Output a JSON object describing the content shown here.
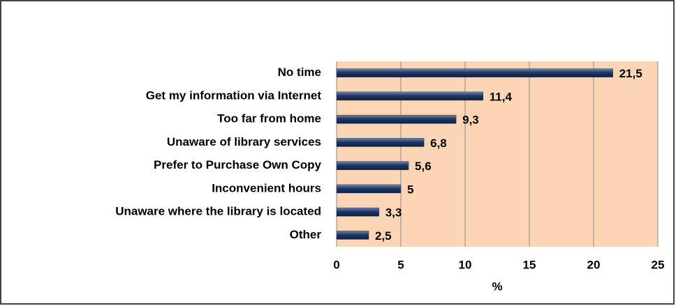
{
  "chart_data": {
    "type": "bar",
    "orientation": "horizontal",
    "categories": [
      "No time",
      "Get my information via Internet",
      "Too far from home",
      "Unaware of library services",
      "Prefer to Purchase Own Copy",
      "Inconvenient hours",
      "Unaware where the library is located",
      "Other"
    ],
    "values": [
      21.5,
      11.4,
      9.3,
      6.8,
      5.6,
      5,
      3.3,
      2.5
    ],
    "value_labels": [
      "21,5",
      "11,4",
      "9,3",
      "6,8",
      "5,6",
      "5",
      "3,3",
      "2,5"
    ],
    "color": "#1f3864",
    "xlabel": "%",
    "xlim": [
      0,
      25
    ],
    "xticks": [
      0,
      5,
      10,
      15,
      20,
      25
    ],
    "grid": true
  }
}
